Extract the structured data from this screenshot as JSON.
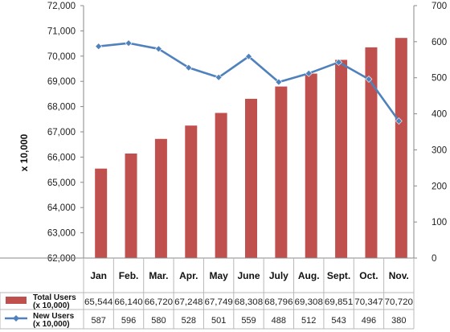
{
  "chart_data": {
    "type": "bar+line",
    "categories": [
      "Jan",
      "Feb.",
      "Mar.",
      "Apr.",
      "May",
      "June",
      "July",
      "Aug.",
      "Sept.",
      "Oct.",
      "Nov."
    ],
    "ylabel": "x 10,000",
    "y_left": {
      "min": 62000,
      "max": 72000,
      "step": 1000,
      "tick_labels": [
        "62,000",
        "63,000",
        "64,000",
        "65,000",
        "66,000",
        "67,000",
        "68,000",
        "69,000",
        "70,000",
        "71,000",
        "72,000"
      ]
    },
    "y_right": {
      "min": 0,
      "max": 700,
      "step": 100,
      "tick_labels": [
        "0",
        "100",
        "200",
        "300",
        "400",
        "500",
        "600",
        "700"
      ]
    },
    "grid": false,
    "series": [
      {
        "name": "Total Users (x 10,000)",
        "name_lines": [
          "Total Users",
          "(x 10,000)"
        ],
        "kind": "bar",
        "axis": "left",
        "color": "#c0504d",
        "values": [
          65544,
          66140,
          66720,
          67248,
          67749,
          68308,
          68796,
          69308,
          69851,
          70347,
          70720
        ],
        "labels": [
          "65,544",
          "66,140",
          "66,720",
          "67,248",
          "67,749",
          "68,308",
          "68,796",
          "69,308",
          "69,851",
          "70,347",
          "70,720"
        ]
      },
      {
        "name": "New Users (x 10,000)",
        "name_lines": [
          "New Users",
          "(x 10,000)"
        ],
        "kind": "line",
        "axis": "right",
        "color": "#4f81bd",
        "values": [
          587,
          596,
          580,
          528,
          501,
          559,
          488,
          512,
          543,
          496,
          380
        ],
        "labels": [
          "587",
          "596",
          "580",
          "528",
          "501",
          "559",
          "488",
          "512",
          "543",
          "496",
          "380"
        ]
      }
    ]
  }
}
